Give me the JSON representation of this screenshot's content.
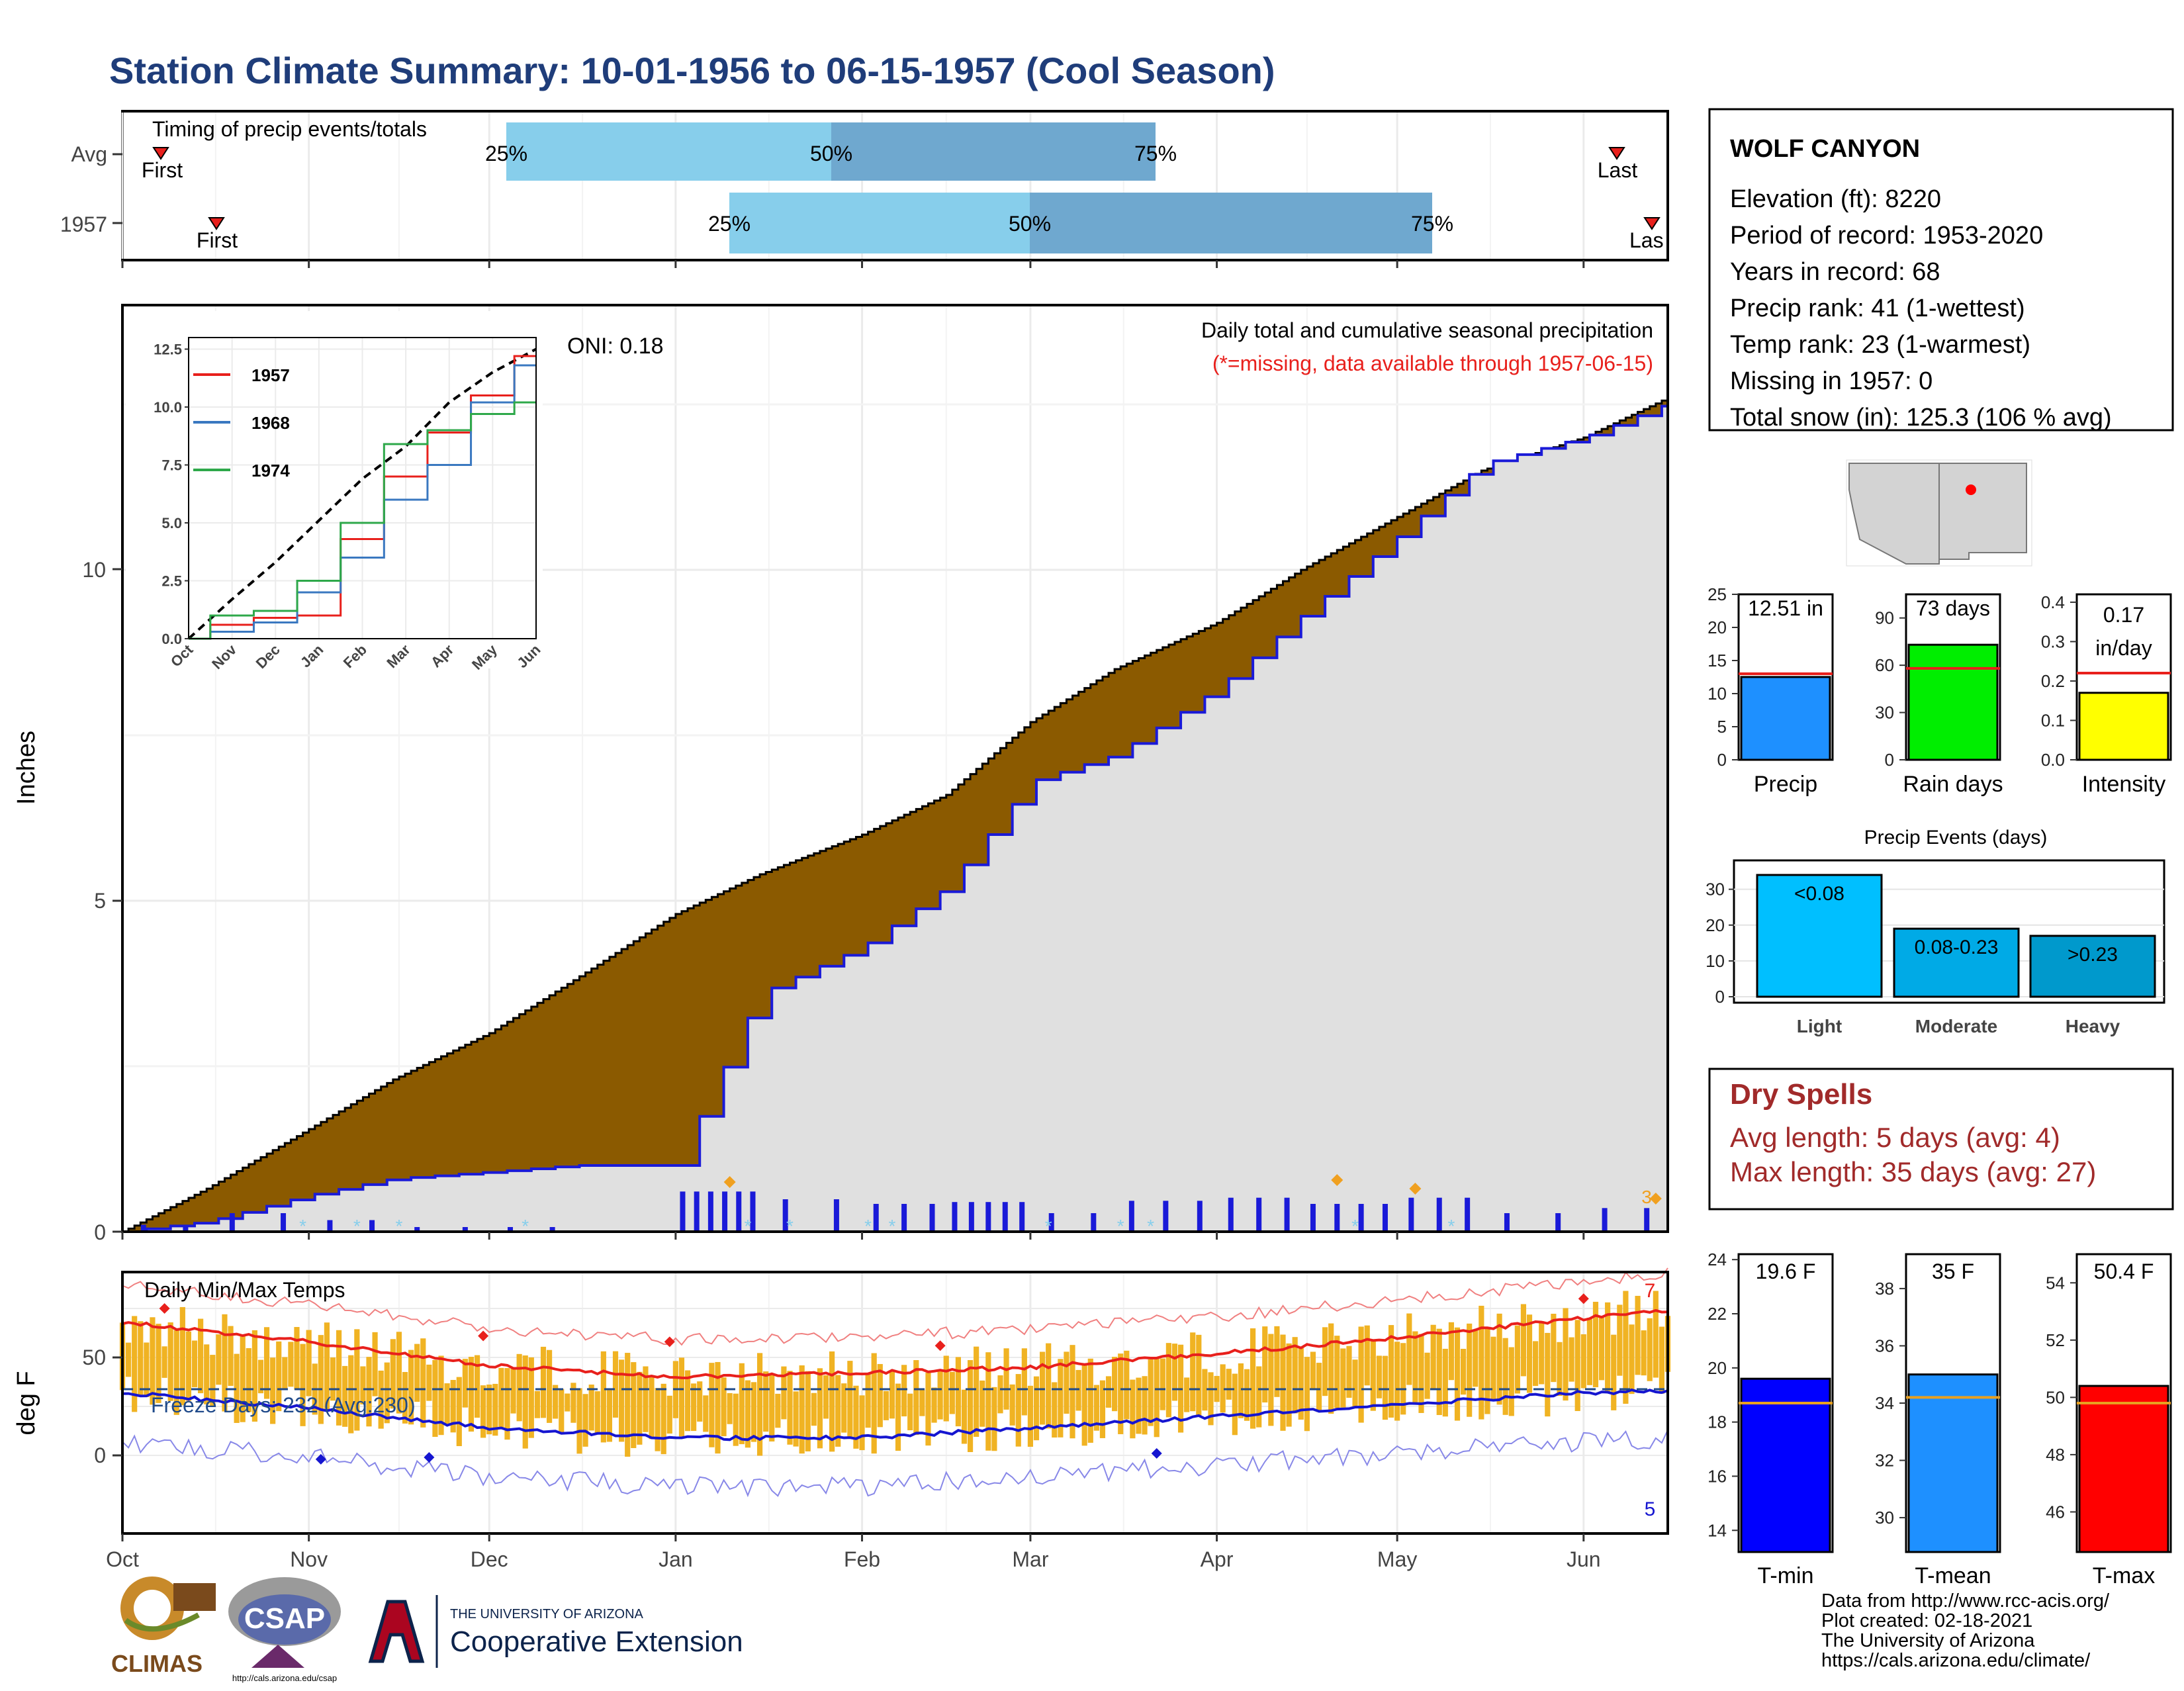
{
  "title": "Station Climate Summary: 10-01-1956 to 06-15-1957 (Cool Season)",
  "colors": {
    "title": "#1f3d7a",
    "cum_fill": "#8b5a00",
    "cum_year": "#1a1ad8",
    "light_blue": "#87ceeb",
    "mid_blue": "#6fa8cf",
    "temp_bar": "#f0b323",
    "red": "#e8201c",
    "blue": "#1515d0",
    "dry_red": "#a12a2a",
    "precip_blue": "#1e90ff",
    "green": "#00ee00",
    "yellow": "#ffff00",
    "event_light": "#00bfff",
    "event_moderate": "#00aae6",
    "event_heavy": "#0099cc"
  },
  "timing": {
    "title": "Timing of precip events/totals",
    "rows": [
      "Avg",
      "1957"
    ],
    "first_label": "First",
    "last_label": "Last",
    "last_label_1957": "Las",
    "pct_labels": [
      "25%",
      "50%",
      "75%"
    ]
  },
  "main": {
    "ylabel": "Inches",
    "yticks": [
      "0",
      "5",
      "10"
    ],
    "annotation_title": "Daily total and cumulative seasonal precipitation",
    "annotation_missing": "(*=missing, data available through 1957-06-15)",
    "oni": "ONI: 0.18",
    "marker_label": "3"
  },
  "inset": {
    "yticks": [
      "0.0",
      "2.5",
      "5.0",
      "7.5",
      "10.0",
      "12.5"
    ],
    "xticks": [
      "Oct",
      "Nov",
      "Dec",
      "Jan",
      "Feb",
      "Mar",
      "Apr",
      "May",
      "Jun"
    ],
    "legend": [
      "1957",
      "1968",
      "1974"
    ]
  },
  "temps": {
    "title": "Daily Min/Max Temps",
    "ylabel": "deg F",
    "yticks": [
      "0",
      "50"
    ],
    "freeze": "Freeze Days: 232 (Avg:230)",
    "max_count": "7",
    "min_count": "5"
  },
  "months": [
    "Oct",
    "Nov",
    "Dec",
    "Jan",
    "Feb",
    "Mar",
    "Apr",
    "May",
    "Jun"
  ],
  "station": {
    "name": "WOLF CANYON",
    "lines": [
      "Elevation (ft): 8220",
      "Period of record: 1953-2020",
      "Years in record: 68",
      "Precip rank: 41 (1-wettest)",
      "Temp rank: 23 (1-warmest)",
      "Missing in 1957: 0",
      "Total snow (in): 125.3 (106 % avg)"
    ]
  },
  "mini_bars": [
    {
      "label": "Precip",
      "value_text": "12.51 in",
      "yticks": [
        "0",
        "5",
        "10",
        "15",
        "20",
        "25"
      ]
    },
    {
      "label": "Rain days",
      "value_text": "73 days",
      "yticks": [
        "0",
        "30",
        "60",
        "90"
      ]
    },
    {
      "label": "Intensity",
      "value_text_1": "0.17",
      "value_text_2": "in/day",
      "yticks": [
        "0.0",
        "0.1",
        "0.2",
        "0.3",
        "0.4"
      ]
    }
  ],
  "events": {
    "title": "Precip Events (days)",
    "yticks": [
      "0",
      "10",
      "20",
      "30"
    ],
    "bars": [
      {
        "cat": "Light",
        "label": "<0.08"
      },
      {
        "cat": "Moderate",
        "label": "0.08-0.23"
      },
      {
        "cat": "Heavy",
        "label": ">0.23"
      }
    ]
  },
  "dry": {
    "title": "Dry Spells",
    "avg": "Avg length: 5 days (avg: 4)",
    "max": "Max length: 35 days (avg: 27)"
  },
  "temp_bars": [
    {
      "label": "T-min",
      "value_text": "19.6 F",
      "yticks": [
        "14",
        "16",
        "18",
        "20",
        "22",
        "24"
      ]
    },
    {
      "label": "T-mean",
      "value_text": "35 F",
      "yticks": [
        "30",
        "32",
        "34",
        "36",
        "38"
      ]
    },
    {
      "label": "T-max",
      "value_text": "50.4 F",
      "yticks": [
        "46",
        "48",
        "50",
        "52",
        "54"
      ]
    }
  ],
  "footer": {
    "lines": [
      "Data from http://www.rcc-acis.org/",
      "Plot created: 02-18-2021",
      "The University of Arizona",
      "https://cals.arizona.edu/climate/"
    ],
    "climas": "CLIMAS",
    "csap": "CSAP",
    "csap_url": "http://cals.arizona.edu/csap",
    "ua_small": "THE UNIVERSITY OF ARIZONA",
    "ua_big": "Cooperative Extension"
  },
  "chart_data": [
    {
      "type": "bar",
      "title": "Timing of precip events/totals",
      "categories": [
        "Avg",
        "1957"
      ],
      "series": [
        {
          "name": "25%",
          "values": [
            "1956-12-06",
            "1957-01-09"
          ]
        },
        {
          "name": "50%",
          "values": [
            "1957-01-26",
            "1957-02-25"
          ]
        },
        {
          "name": "75%",
          "values": [
            "1957-03-13",
            "1957-04-29"
          ]
        },
        {
          "name": "First",
          "values": [
            "1956-10-07",
            "1956-10-16"
          ]
        },
        {
          "name": "Last",
          "values": [
            "1957-06-06",
            "1957-06-11"
          ]
        }
      ]
    },
    {
      "type": "area",
      "title": "Daily total and cumulative seasonal precipitation",
      "ylabel": "Inches",
      "ylim": [
        0,
        12.7
      ],
      "x": [
        "1956-10-01",
        "1956-10-15",
        "1956-11-01",
        "1956-11-15",
        "1956-12-01",
        "1956-12-15",
        "1957-01-01",
        "1957-01-15",
        "1957-02-01",
        "1957-02-15",
        "1957-03-01",
        "1957-03-15",
        "1957-04-01",
        "1957-04-15",
        "1957-05-01",
        "1957-05-15",
        "1957-06-01",
        "1957-06-15"
      ],
      "series": [
        {
          "name": "Avg",
          "values": [
            0.0,
            0.65,
            1.55,
            2.3,
            3.0,
            3.8,
            4.8,
            5.4,
            6.0,
            6.6,
            7.7,
            8.5,
            9.2,
            10.0,
            10.8,
            11.5,
            12.0,
            12.6
          ]
        },
        {
          "name": "1957",
          "values": [
            0.0,
            0.15,
            0.55,
            0.8,
            0.9,
            1.0,
            1.0,
            3.6,
            4.3,
            5.2,
            6.8,
            7.2,
            8.2,
            9.3,
            10.5,
            11.6,
            12.0,
            12.51
          ]
        }
      ]
    },
    {
      "type": "line",
      "title": "",
      "ylim": [
        0,
        12.5
      ],
      "x": [
        "Oct",
        "Nov",
        "Dec",
        "Jan",
        "Feb",
        "Mar",
        "Apr",
        "May",
        "Jun"
      ],
      "series": [
        {
          "name": "",
          "values": [
            0.0,
            1.7,
            3.3,
            5.1,
            6.9,
            8.3,
            10.2,
            11.5,
            12.5
          ]
        },
        {
          "name": "1957",
          "values": [
            0.0,
            0.6,
            0.9,
            1.0,
            4.3,
            7.0,
            8.9,
            10.5,
            12.2
          ]
        },
        {
          "name": "1968",
          "values": [
            0.0,
            0.3,
            0.7,
            2.0,
            3.5,
            6.0,
            7.5,
            10.2,
            11.8
          ]
        },
        {
          "name": "1974",
          "values": [
            0.0,
            1.0,
            1.2,
            2.5,
            5.0,
            8.4,
            9.0,
            9.7,
            10.2
          ]
        }
      ]
    },
    {
      "type": "line",
      "title": "Daily Min/Max Temps",
      "ylabel": "deg F",
      "x": [
        "1956-10-01",
        "1956-11-01",
        "1956-12-01",
        "1957-01-01",
        "1957-02-01",
        "1957-03-01",
        "1957-04-01",
        "1957-05-01",
        "1957-06-01",
        "1957-06-15"
      ],
      "series": [
        {
          "name": "avg max",
          "values": [
            68,
            58,
            46,
            40,
            42,
            45,
            52,
            60,
            70,
            74
          ]
        },
        {
          "name": "avg min",
          "values": [
            32,
            24,
            14,
            9,
            9,
            14,
            20,
            26,
            32,
            33
          ]
        }
      ]
    },
    {
      "type": "bar",
      "categories": [
        "Precip",
        "Rain days",
        "Intensity"
      ],
      "series": [
        {
          "name": "1957",
          "values": [
            12.51,
            73,
            0.17
          ]
        },
        {
          "name": "avg",
          "values": [
            13.0,
            58,
            0.22
          ]
        }
      ]
    },
    {
      "type": "bar",
      "title": "Precip Events (days)",
      "categories": [
        "Light",
        "Moderate",
        "Heavy"
      ],
      "values": [
        34,
        19,
        17
      ],
      "ylim": [
        0,
        35
      ]
    },
    {
      "type": "bar",
      "categories": [
        "T-min",
        "T-mean",
        "T-max"
      ],
      "series": [
        {
          "name": "1957",
          "values": [
            19.6,
            35,
            50.4
          ]
        },
        {
          "name": "avg",
          "values": [
            18.7,
            34.2,
            49.8
          ]
        }
      ]
    }
  ]
}
